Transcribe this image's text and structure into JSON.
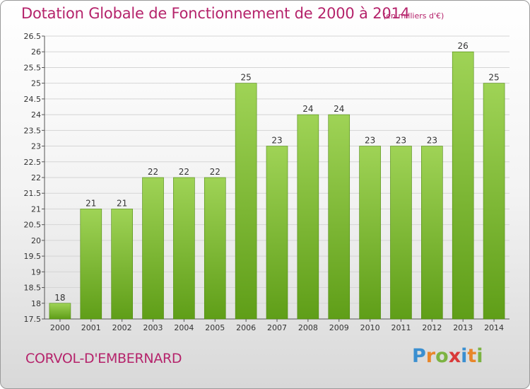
{
  "title": "Dotation Globale de Fonctionnement de 2000 à 2014",
  "unit_note": "(en milliers d'€)",
  "commune": "CORVOL-D'EMBERNARD",
  "brand": {
    "letters": [
      "P",
      "r",
      "o",
      "x",
      "i",
      "t",
      "i"
    ],
    "colors": [
      "#3a8fd0",
      "#e8862a",
      "#7cb342",
      "#d93a3a",
      "#3a8fd0",
      "#e8862a",
      "#7cb342"
    ]
  },
  "colors": {
    "bar_light": "#9fd356",
    "bar_dark": "#5f9e18",
    "bar_edge": "#4f8a10",
    "grid": "#d5d5d5",
    "title": "#b5236b"
  },
  "chart_data": {
    "type": "bar",
    "categories": [
      "2000",
      "2001",
      "2002",
      "2003",
      "2004",
      "2005",
      "2006",
      "2007",
      "2008",
      "2009",
      "2010",
      "2011",
      "2012",
      "2013",
      "2014"
    ],
    "values": [
      18,
      21,
      21,
      22,
      22,
      22,
      25,
      23,
      24,
      24,
      23,
      23,
      23,
      26,
      25
    ],
    "ylim": [
      17.5,
      26.5
    ],
    "yticks": [
      "17.5",
      "18",
      "18.5",
      "19",
      "19.5",
      "20",
      "20.5",
      "21",
      "21.5",
      "22",
      "22.5",
      "23",
      "23.5",
      "24",
      "24.5",
      "25",
      "25.5",
      "26",
      "26.5"
    ],
    "grid": true,
    "legend": "none"
  }
}
